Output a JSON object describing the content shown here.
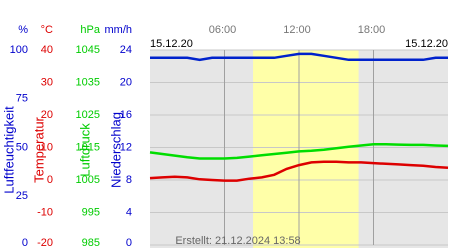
{
  "chart_data": {
    "type": "line",
    "date_left": "15.12.20",
    "date_right": "15.12.20",
    "footer": "Erstellt: 21.12.2024 13:58",
    "xlim": [
      0,
      24
    ],
    "xticks": [
      {
        "value": 6,
        "label": "06:00"
      },
      {
        "value": 12,
        "label": "12:00"
      },
      {
        "value": 18,
        "label": "18:00"
      }
    ],
    "highlight": [
      8.3,
      16.8
    ],
    "grid": true,
    "axes": [
      {
        "unit": "%",
        "title": "Luftfeuchtigkeit",
        "color": "#0000cc",
        "ylim": [
          0,
          100
        ],
        "yticks": [
          0,
          25,
          50,
          75,
          100
        ]
      },
      {
        "unit": "°C",
        "title": "Temperatur",
        "color": "#dd0000",
        "ylim": [
          -20,
          40
        ],
        "yticks": [
          -20,
          -10,
          0,
          10,
          20,
          30,
          40
        ]
      },
      {
        "unit": "hPa",
        "title": "Luftdruck",
        "color": "#00cc00",
        "ylim": [
          985,
          1045
        ],
        "yticks": [
          985,
          995,
          1005,
          1015,
          1025,
          1035,
          1045
        ]
      },
      {
        "unit": "mm/h",
        "title": "Niederschlag",
        "color": "#0000cc",
        "ylim": [
          0,
          24
        ],
        "yticks": [
          0,
          4,
          8,
          12,
          16,
          20,
          24
        ]
      }
    ],
    "x": [
      0,
      1,
      2,
      3,
      4,
      5,
      6,
      7,
      8,
      9,
      10,
      11,
      12,
      13,
      14,
      15,
      16,
      17,
      18,
      19,
      20,
      21,
      22,
      23,
      24
    ],
    "series": [
      {
        "axis": 0,
        "color": "#0022cc",
        "values": [
          96,
          96,
          96,
          96,
          95,
          96,
          96,
          96,
          96,
          96,
          96,
          97,
          98,
          98,
          97,
          96,
          95,
          95,
          95,
          95,
          95,
          95,
          95,
          96,
          96
        ]
      },
      {
        "axis": 1,
        "color": "#dd0000",
        "values": [
          0.6,
          0.8,
          1,
          0.8,
          0.2,
          0,
          -0.2,
          -0.2,
          0.4,
          0.8,
          1.6,
          3.4,
          4.6,
          5.4,
          5.6,
          5.6,
          5.4,
          5.4,
          5.2,
          5,
          4.8,
          4.6,
          4.4,
          4,
          3.8
        ]
      },
      {
        "axis": 2,
        "color": "#00dd00",
        "values": [
          1013.5,
          1013,
          1012.5,
          1012,
          1011.6,
          1011.6,
          1011.6,
          1011.8,
          1012.2,
          1012.6,
          1013,
          1013.4,
          1013.8,
          1014,
          1014.3,
          1014.8,
          1015.2,
          1015.6,
          1016,
          1016,
          1015.9,
          1015.8,
          1015.8,
          1015.6,
          1015.5
        ]
      }
    ]
  }
}
